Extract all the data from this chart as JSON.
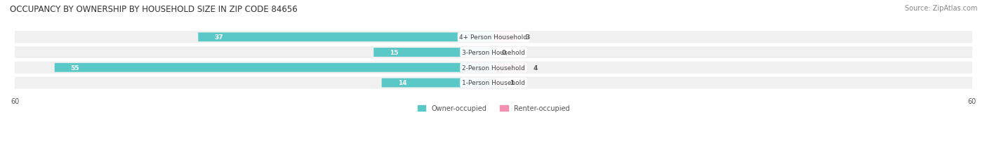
{
  "title": "OCCUPANCY BY OWNERSHIP BY HOUSEHOLD SIZE IN ZIP CODE 84656",
  "source": "Source: ZipAtlas.com",
  "categories": [
    "1-Person Household",
    "2-Person Household",
    "3-Person Household",
    "4+ Person Household"
  ],
  "owner_values": [
    14,
    55,
    15,
    37
  ],
  "renter_values": [
    1,
    4,
    0,
    3
  ],
  "owner_color": "#5bc8c8",
  "renter_color": "#f48fb1",
  "bar_bg_color": "#e8e8e8",
  "axis_max": 60,
  "label_color": "#555555",
  "title_color": "#333333",
  "legend_owner": "Owner-occupied",
  "legend_renter": "Renter-occupied",
  "background_color": "#ffffff",
  "bar_height": 0.55,
  "row_bg_color": "#f0f0f0"
}
